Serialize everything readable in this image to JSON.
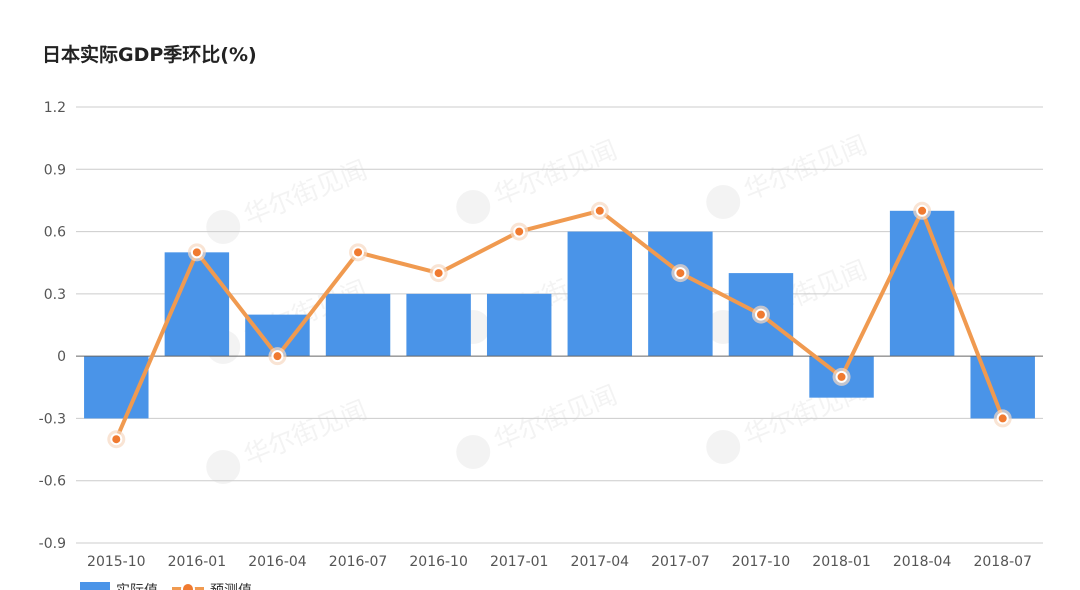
{
  "chart_data": {
    "type": "bar",
    "title": "日本实际GDP季环比(%)",
    "categories": [
      "2015-10",
      "2016-01",
      "2016-04",
      "2016-07",
      "2016-10",
      "2017-01",
      "2017-04",
      "2017-07",
      "2017-10",
      "2018-01",
      "2018-04",
      "2018-07"
    ],
    "series": [
      {
        "name": "实际值",
        "type": "bar",
        "color": "#4a94e8",
        "values": [
          -0.3,
          0.5,
          0.2,
          0.3,
          0.3,
          0.3,
          0.6,
          0.6,
          0.4,
          -0.2,
          0.7,
          -0.3
        ]
      },
      {
        "name": "预测值",
        "type": "line",
        "color": "#f09a50",
        "marker_color": "#f07a30",
        "values": [
          -0.4,
          0.5,
          0.0,
          0.5,
          0.4,
          0.6,
          0.7,
          0.4,
          0.2,
          -0.1,
          0.7,
          -0.3
        ]
      }
    ],
    "y_ticks": [
      "1.2",
      "0.9",
      "0.6",
      "0.3",
      "0",
      "-0.3",
      "-0.6",
      "-0.9"
    ],
    "ylim": [
      -0.9,
      1.2
    ],
    "grid": true,
    "legend": "bottom-left",
    "watermark": "华尔街见闻"
  }
}
